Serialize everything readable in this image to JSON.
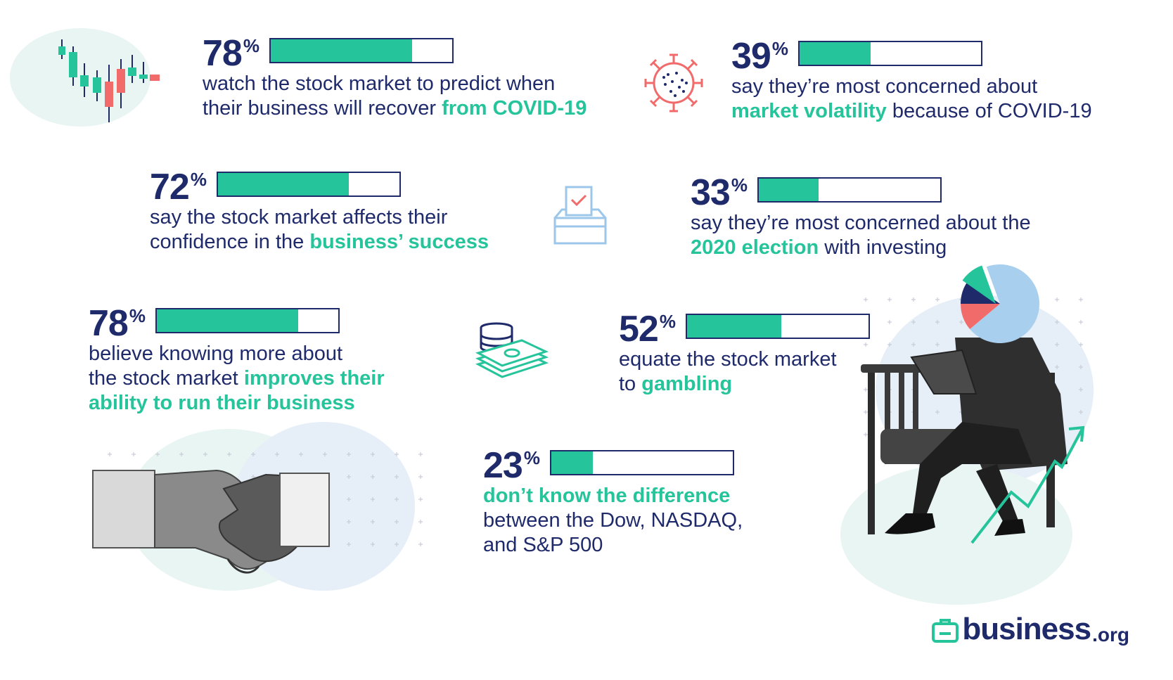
{
  "chart_data": {
    "type": "bar",
    "title": "",
    "xlabel": "",
    "ylabel": "",
    "ylim": [
      0,
      100
    ],
    "unit": "%",
    "values": [
      78,
      39,
      72,
      33,
      78,
      52,
      23
    ],
    "stats": [
      {
        "value": 78,
        "sign": "%",
        "lines": [
          [
            {
              "t": "watch the stock market to predict when",
              "h": false
            }
          ],
          [
            {
              "t": "their business will recover ",
              "h": false
            },
            {
              "t": "from COVID-19",
              "h": true
            }
          ]
        ]
      },
      {
        "value": 39,
        "sign": "%",
        "lines": [
          [
            {
              "t": "say they’re most concerned about",
              "h": false
            }
          ],
          [
            {
              "t": "market volatility",
              "h": true
            },
            {
              "t": " because of COVID-19",
              "h": false
            }
          ]
        ]
      },
      {
        "value": 72,
        "sign": "%",
        "lines": [
          [
            {
              "t": "say the stock market affects their",
              "h": false
            }
          ],
          [
            {
              "t": "confidence in the ",
              "h": false
            },
            {
              "t": "business’ success",
              "h": true
            }
          ]
        ]
      },
      {
        "value": 33,
        "sign": "%",
        "lines": [
          [
            {
              "t": "say they’re most concerned about the",
              "h": false
            }
          ],
          [
            {
              "t": "2020 election",
              "h": true
            },
            {
              "t": " with investing",
              "h": false
            }
          ]
        ]
      },
      {
        "value": 78,
        "sign": "%",
        "lines": [
          [
            {
              "t": "believe knowing more about",
              "h": false
            }
          ],
          [
            {
              "t": "the stock market ",
              "h": false
            },
            {
              "t": "improves their",
              "h": true
            }
          ],
          [
            {
              "t": "ability to run their business",
              "h": true
            }
          ]
        ]
      },
      {
        "value": 52,
        "sign": "%",
        "lines": [
          [
            {
              "t": "equate the stock market",
              "h": false
            }
          ],
          [
            {
              "t": "to ",
              "h": false
            },
            {
              "t": "gambling",
              "h": true
            }
          ]
        ]
      },
      {
        "value": 23,
        "sign": "%",
        "lines": [
          [
            {
              "t": "don’t know the difference",
              "h": true
            }
          ],
          [
            {
              "t": "between the Dow, NASDAQ,",
              "h": false
            }
          ],
          [
            {
              "t": "and S&P 500",
              "h": false
            }
          ]
        ]
      }
    ]
  },
  "logo": {
    "main": "business",
    "tld": ".org"
  },
  "colors": {
    "navy": "#1f2a6b",
    "accent": "#26c49b",
    "red": "#f26b6b",
    "lightblue": "#a9cfee"
  },
  "icons": [
    "candlestick-chart-icon",
    "virus-icon",
    "ballot-box-icon",
    "money-stack-icon",
    "pie-chart-head-icon",
    "rising-line-icon",
    "handshake-icon",
    "briefcase-logo-icon"
  ]
}
